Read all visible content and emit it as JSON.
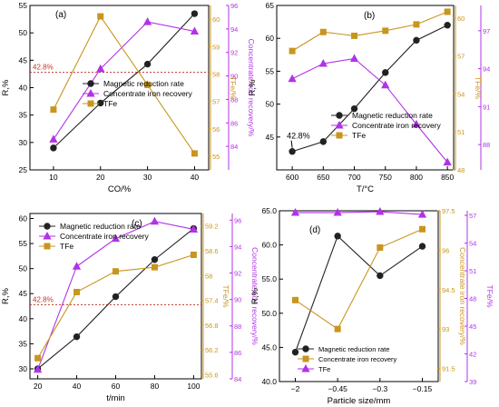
{
  "colors": {
    "black": "#222222",
    "purple": "#B233E6",
    "gold": "#C8961E",
    "ref_line": "#C0392B",
    "grid": "#d9d9d9"
  },
  "chart_data": [
    {
      "type": "line",
      "panel_label": "(a)",
      "xlabel": "CO/%",
      "ylabel": "R,%",
      "y2label": "TFe/%",
      "y3label": "Concentrate iron recovery/%",
      "x": [
        10,
        20,
        30,
        40
      ],
      "xlim": [
        5,
        43
      ],
      "xticks": [
        10,
        20,
        30,
        40
      ],
      "ylim": [
        25,
        55
      ],
      "yticks": [
        25,
        30,
        35,
        40,
        45,
        50,
        55
      ],
      "y2lim": [
        54.5,
        60.5
      ],
      "y2ticks": [
        55,
        56,
        57,
        58,
        59,
        60
      ],
      "y3lim": [
        82,
        96
      ],
      "y3ticks": [
        84,
        86,
        88,
        90,
        92,
        94,
        96
      ],
      "reference_line": {
        "y": 42.8,
        "label": "42.8%"
      },
      "series": [
        {
          "name": "Magnetic reduction rate",
          "axis": "left",
          "marker": "circle",
          "color": "black",
          "values": [
            29.0,
            37.2,
            44.3,
            53.5
          ]
        },
        {
          "name": "Concentrate iron recovery",
          "axis": "right-outer",
          "marker": "triangle",
          "color": "purple",
          "values": [
            84.6,
            90.6,
            94.6,
            93.8
          ]
        },
        {
          "name": "TFe",
          "axis": "right-inner",
          "marker": "square",
          "color": "gold",
          "values": [
            56.7,
            60.1,
            57.6,
            55.1
          ]
        }
      ],
      "legend": "center"
    },
    {
      "type": "line",
      "panel_label": "(b)",
      "xlabel": "T/°C",
      "ylabel": "R,%",
      "y2label": "TFe/%",
      "y3label": "Concentrate iron recovery/%",
      "x": [
        600,
        650,
        700,
        750,
        800,
        850
      ],
      "xlim": [
        575,
        860
      ],
      "xticks": [
        600,
        650,
        700,
        750,
        800,
        850
      ],
      "ylim": [
        40,
        65
      ],
      "yticks": [
        45,
        50,
        55,
        60,
        65
      ],
      "y2lim": [
        48,
        61
      ],
      "y2ticks": [
        48,
        51,
        54,
        57,
        60
      ],
      "y3lim": [
        86,
        99
      ],
      "y3ticks": [
        88,
        91,
        94,
        97
      ],
      "annotation": "42.8%",
      "series": [
        {
          "name": "Magnetic reduction rate",
          "axis": "left",
          "marker": "circle",
          "color": "black",
          "values": [
            42.8,
            44.3,
            49.3,
            54.8,
            59.7,
            62.0
          ]
        },
        {
          "name": "Concentrate iron recovery",
          "axis": "right-outer",
          "marker": "triangle",
          "color": "purple",
          "values": [
            93.2,
            94.4,
            94.8,
            92.7,
            89.6,
            86.6
          ]
        },
        {
          "name": "TFe",
          "axis": "right-inner",
          "marker": "square",
          "color": "gold",
          "values": [
            57.4,
            58.9,
            58.6,
            59.0,
            59.5,
            60.5
          ]
        }
      ],
      "legend": "center-right"
    },
    {
      "type": "line",
      "panel_label": "(c)",
      "xlabel": "t/min",
      "ylabel": "R,%",
      "y2label": "TFe/%",
      "y3label": "Concentrate iron recovery/%",
      "x": [
        20,
        40,
        60,
        80,
        100
      ],
      "xlim": [
        16,
        104
      ],
      "xticks": [
        20,
        40,
        60,
        80,
        100
      ],
      "ylim": [
        28,
        61
      ],
      "yticks": [
        30,
        35,
        40,
        45,
        50,
        55,
        60
      ],
      "y2lim": [
        55.5,
        59.5
      ],
      "y2ticks": [
        55.6,
        56.2,
        56.8,
        57.4,
        58.0,
        58.6,
        59.2
      ],
      "y3lim": [
        84,
        96.5
      ],
      "y3ticks": [
        84,
        86,
        88,
        90,
        92,
        94,
        96
      ],
      "reference_line": {
        "y": 42.8,
        "label": "42.8%"
      },
      "series": [
        {
          "name": "Magnetic reduction rate",
          "axis": "left",
          "marker": "circle",
          "color": "black",
          "values": [
            30.0,
            36.4,
            44.4,
            51.8,
            58.0
          ]
        },
        {
          "name": "Concentrate iron recovery",
          "axis": "right-outer",
          "marker": "triangle",
          "color": "purple",
          "values": [
            84.7,
            92.5,
            94.6,
            95.9,
            95.3
          ]
        },
        {
          "name": "TFe",
          "axis": "right-inner",
          "marker": "square",
          "color": "gold",
          "values": [
            56.0,
            57.6,
            58.1,
            58.2,
            58.5
          ]
        }
      ],
      "legend": "top-left"
    },
    {
      "type": "line",
      "panel_label": "(d)",
      "xlabel": "Particle size/mm",
      "ylabel": "R,%",
      "y2label": "Concentrate iron recovery/%",
      "y3label": "TFe/%",
      "x_categories": [
        "−2",
        "−0.45",
        "−0.3",
        "−0.15"
      ],
      "ylim": [
        40,
        65
      ],
      "yticks": [
        40.0,
        45.0,
        50.0,
        55.0,
        60.0,
        65.0
      ],
      "y2lim": [
        91,
        97.5
      ],
      "y2ticks": [
        91.5,
        93.0,
        94.5,
        96.0,
        97.5
      ],
      "y3lim": [
        39,
        57.5
      ],
      "y3ticks": [
        39,
        42,
        45,
        48,
        51,
        54,
        57
      ],
      "series": [
        {
          "name": "Magnetic reduction rate",
          "axis": "left",
          "marker": "circle",
          "color": "black",
          "values": [
            44.3,
            61.3,
            55.5,
            59.8
          ]
        },
        {
          "name": "Concentrate iron recovery",
          "axis": "right-inner",
          "marker": "square",
          "color": "gold",
          "values": [
            94.1,
            93.0,
            96.1,
            96.8
          ]
        },
        {
          "name": "TFe",
          "axis": "right-outer",
          "marker": "triangle",
          "color": "purple",
          "values": [
            57.3,
            57.3,
            57.4,
            57.1
          ]
        }
      ],
      "legend": "bottom-left"
    }
  ]
}
